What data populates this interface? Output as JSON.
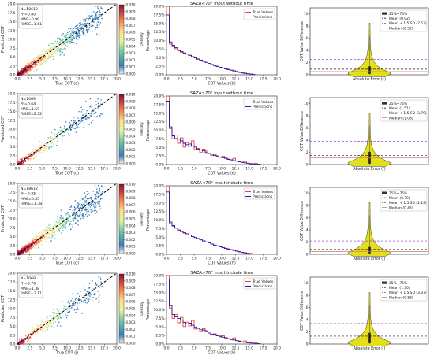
{
  "figure": {
    "rows": [
      {
        "scatter": {
          "stats": [
            "N=18612",
            "R²=0.80",
            "MAE=0.99",
            "RMSE=1.61"
          ],
          "xlabel": "True COT (a)",
          "ylabel": "Predicted COT",
          "density": "high",
          "seed": 11
        },
        "colorbar": {
          "label": "Density",
          "ticks": [
            "0.010",
            "0.009",
            "0.008",
            "0.007",
            "0.006",
            "0.005",
            "0.004",
            "0.003",
            "0.002",
            "0.001",
            "0.000"
          ]
        },
        "hist": {
          "title": "SAZA<70° Input without time",
          "xlabel": "COT Values (b)",
          "ylabel": "Percentage",
          "legend": [
            "True Values",
            "Predictions"
          ]
        },
        "violin": {
          "xlabel": "Absolute Error (c)",
          "ylabel": "COT Value Difference",
          "legend": [
            "25%~75%",
            "Mean (0.92)",
            "Mean + 1.5 SD (2.53)",
            "Median (0.52)"
          ],
          "mean": 0.92,
          "upper": 2.53,
          "median": 0.52,
          "peak": 8.5
        }
      },
      {
        "scatter": {
          "stats": [
            "N=1069",
            "R²=0.64",
            "MAE=1.59",
            "RMSE=2.32"
          ],
          "xlabel": "True COT (d)",
          "ylabel": "Predicted COT",
          "density": "low",
          "seed": 23
        },
        "colorbar": {
          "label": "Density",
          "ticks": [
            "0.010",
            "0.009",
            "0.008",
            "0.007",
            "0.006",
            "0.005",
            "0.004",
            "0.003",
            "0.002",
            "0.001",
            "0.000"
          ]
        },
        "hist": {
          "title": "SAZA>70° Input without time",
          "xlabel": "COT Values (e)",
          "ylabel": "Percentage",
          "legend": [
            "True Values",
            "Predictions"
          ]
        },
        "violin": {
          "xlabel": "Absolute Error (f)",
          "ylabel": "COT Value Difference",
          "legend": [
            "25%~75%",
            "Mean (1.51)",
            "Mean + 1.5 SD (3.79)",
            "Median (1.08)"
          ],
          "mean": 1.51,
          "upper": 3.79,
          "median": 1.08,
          "peak": 8.5
        }
      },
      {
        "scatter": {
          "stats": [
            "N=18612",
            "R²=0.85",
            "MAE=0.85",
            "RMSE=1.38"
          ],
          "xlabel": "True COT (g)",
          "ylabel": "Predicted COT",
          "density": "high",
          "seed": 37
        },
        "colorbar": {
          "label": "Density",
          "ticks": [
            "0.010",
            "0.009",
            "0.008",
            "0.007",
            "0.006",
            "0.005",
            "0.004",
            "0.003",
            "0.002",
            "0.001",
            "0.000"
          ]
        },
        "hist": {
          "title": "SAZA<70° Input include time",
          "xlabel": "COT Values (h)",
          "ylabel": "Percentage",
          "legend": [
            "True Values",
            "Predictions"
          ]
        },
        "violin": {
          "xlabel": "Absolute Error (i)",
          "ylabel": "COT Value Difference",
          "legend": [
            "25%~75%",
            "Mean (0.79)",
            "Mean + 1.5 SD (2.19)",
            "Median (0.45)"
          ],
          "mean": 0.79,
          "upper": 2.19,
          "median": 0.45,
          "peak": 8.5
        }
      },
      {
        "scatter": {
          "stats": [
            "N=1069",
            "R²=0.70",
            "MAE=1.38",
            "RMSE=2.11"
          ],
          "xlabel": "True COT (j)",
          "ylabel": "Predicted COT",
          "density": "low",
          "seed": 53
        },
        "colorbar": {
          "label": "Density",
          "ticks": [
            "0.010",
            "0.009",
            "0.008",
            "0.007",
            "0.006",
            "0.005",
            "0.004",
            "0.003",
            "0.002",
            "0.001",
            "0.000"
          ]
        },
        "hist": {
          "title": "SAZA>70° Input include time",
          "xlabel": "COT Values (k)",
          "ylabel": "Percentage",
          "legend": [
            "True Values",
            "Predictions"
          ]
        },
        "violin": {
          "xlabel": "Absolute Error (l)",
          "ylabel": "COT Value Difference",
          "legend": [
            "25%~75%",
            "Mean (1.30)",
            "Mean + 1.5 SD (3.37)",
            "Median (0.88)"
          ],
          "mean": 1.3,
          "upper": 3.37,
          "median": 0.88,
          "peak": 8.5
        }
      }
    ],
    "scatter_ticks": [
      "0.0",
      "2.5",
      "5.0",
      "7.5",
      "10.0",
      "12.5",
      "15.0",
      "17.5",
      "20.0"
    ],
    "hist_xticks": [
      "0.0",
      "2.5",
      "5.0",
      "7.5",
      "10.0",
      "12.5",
      "15.0",
      "17.5",
      "20.0"
    ],
    "hist_yticks": [
      "0.0%",
      "2.5%",
      "5.0%",
      "7.5%",
      "10.0%",
      "12.5%",
      "15.0%",
      "17.5%",
      "20.0%"
    ],
    "violin_yticks": [
      "0",
      "2",
      "4",
      "6",
      "8",
      "10"
    ]
  },
  "chart_data": [
    {
      "type": "scatter",
      "title": "",
      "xlabel": "True COT (a)",
      "ylabel": "Predicted COT",
      "xlim": [
        0,
        20
      ],
      "ylim": [
        0,
        20
      ],
      "annotations": [
        "N=18612",
        "R²=0.80",
        "MAE=0.99",
        "RMSE=1.61"
      ],
      "colorbar": {
        "label": "Density",
        "range": [
          0,
          0.01
        ]
      }
    },
    {
      "type": "bar",
      "title": "SAZA<70° Input without time",
      "xlabel": "COT Values (b)",
      "ylabel": "Percentage",
      "ylim": [
        0,
        20
      ],
      "x": [
        0.5,
        1.0,
        1.5,
        2.0,
        2.5,
        3.0,
        3.5,
        4.0,
        4.5,
        5.0,
        5.5,
        6.0,
        6.5,
        7.0,
        7.5,
        8.0,
        8.5,
        9.0,
        9.5,
        10.0,
        10.5,
        11.0,
        11.5,
        12.0,
        12.5,
        13.0,
        13.5,
        14.0,
        14.5,
        15.0,
        15.5,
        16.0
      ],
      "series": [
        {
          "name": "True Values",
          "values": [
            20.0,
            9.0,
            8.2,
            7.6,
            7.0,
            6.6,
            6.2,
            6.0,
            5.6,
            5.2,
            4.9,
            4.5,
            4.2,
            3.9,
            3.6,
            3.3,
            3.0,
            2.7,
            2.5,
            2.2,
            2.0,
            1.8,
            1.6,
            1.4,
            1.2,
            1.0,
            0.8,
            0.6,
            0.5,
            0.3,
            0.2,
            0.1
          ]
        },
        {
          "name": "Predictions",
          "values": [
            17.5,
            9.6,
            8.6,
            7.9,
            7.2,
            6.8,
            6.4,
            6.1,
            5.7,
            5.3,
            5.0,
            4.6,
            4.3,
            3.9,
            3.6,
            3.3,
            3.0,
            2.7,
            2.4,
            2.2,
            1.9,
            1.7,
            1.5,
            1.3,
            1.1,
            0.9,
            0.7,
            0.5,
            0.4,
            0.3,
            0.2,
            0.1
          ]
        }
      ]
    },
    {
      "type": "violin",
      "title": "",
      "xlabel": "Absolute Error (c)",
      "ylabel": "COT Value Difference",
      "ylim": [
        0,
        11
      ],
      "mean": 0.92,
      "mean_plus_1_5sd": 2.53,
      "median": 0.52,
      "legend": [
        "25%~75%",
        "Mean (0.92)",
        "Mean + 1.5 SD (2.53)",
        "Median (0.52)"
      ]
    },
    {
      "type": "scatter",
      "title": "",
      "xlabel": "True COT (d)",
      "ylabel": "Predicted COT",
      "xlim": [
        0,
        20
      ],
      "ylim": [
        0,
        20
      ],
      "annotations": [
        "N=1069",
        "R²=0.64",
        "MAE=1.59",
        "RMSE=2.32"
      ],
      "colorbar": {
        "label": "Density",
        "range": [
          0,
          0.01
        ]
      }
    },
    {
      "type": "bar",
      "title": "SAZA>70° Input without time",
      "xlabel": "COT Values (e)",
      "ylabel": "Percentage",
      "ylim": [
        0,
        20
      ],
      "x": [
        0.5,
        1.0,
        1.5,
        2.0,
        2.5,
        3.0,
        3.5,
        4.0,
        4.5,
        5.0,
        5.5,
        6.0,
        6.5,
        7.0,
        7.5,
        8.0,
        8.5,
        9.0,
        9.5,
        10.0,
        10.5,
        11.0,
        11.5,
        12.0,
        12.5,
        13.0,
        13.5,
        14.0,
        14.5,
        15.0,
        15.5,
        16.0,
        16.5,
        17.0
      ],
      "series": [
        {
          "name": "True Values",
          "values": [
            20.0,
            10.5,
            7.5,
            8.6,
            6.2,
            7.8,
            5.1,
            6.4,
            5.3,
            6.9,
            4.4,
            4.7,
            3.6,
            4.5,
            3.9,
            3.2,
            2.6,
            3.0,
            2.4,
            2.1,
            2.4,
            1.9,
            1.6,
            1.3,
            1.8,
            1.0,
            0.9,
            0.7,
            0.9,
            0.4,
            0.3,
            0.2,
            0.3,
            0.1
          ]
        },
        {
          "name": "Predictions",
          "values": [
            18.5,
            11.0,
            8.4,
            7.6,
            7.4,
            6.9,
            6.2,
            5.8,
            6.0,
            5.4,
            5.1,
            4.5,
            4.3,
            4.0,
            3.5,
            3.2,
            3.0,
            2.7,
            2.5,
            2.2,
            2.0,
            1.8,
            1.5,
            1.4,
            1.1,
            1.0,
            0.8,
            0.6,
            0.5,
            0.4,
            0.2,
            0.2,
            0.1,
            0.1
          ]
        }
      ]
    },
    {
      "type": "violin",
      "title": "",
      "xlabel": "Absolute Error (f)",
      "ylabel": "COT Value Difference",
      "ylim": [
        0,
        11
      ],
      "mean": 1.51,
      "mean_plus_1_5sd": 3.79,
      "median": 1.08,
      "legend": [
        "25%~75%",
        "Mean (1.51)",
        "Mean + 1.5 SD (3.79)",
        "Median (1.08)"
      ]
    },
    {
      "type": "scatter",
      "title": "",
      "xlabel": "True COT (g)",
      "ylabel": "Predicted COT",
      "xlim": [
        0,
        20
      ],
      "ylim": [
        0,
        20
      ],
      "annotations": [
        "N=18612",
        "R²=0.85",
        "MAE=0.85",
        "RMSE=1.38"
      ],
      "colorbar": {
        "label": "Density",
        "range": [
          0,
          0.01
        ]
      }
    },
    {
      "type": "bar",
      "title": "SAZA<70° Input include time",
      "xlabel": "COT Values (h)",
      "ylabel": "Percentage",
      "ylim": [
        0,
        20
      ],
      "x": [
        0.5,
        1.0,
        1.5,
        2.0,
        2.5,
        3.0,
        3.5,
        4.0,
        4.5,
        5.0,
        5.5,
        6.0,
        6.5,
        7.0,
        7.5,
        8.0,
        8.5,
        9.0,
        9.5,
        10.0,
        10.5,
        11.0,
        11.5,
        12.0,
        12.5,
        13.0,
        13.5,
        14.0,
        14.5,
        15.0,
        15.5,
        16.0
      ],
      "series": [
        {
          "name": "True Values",
          "values": [
            20.0,
            9.0,
            8.2,
            7.6,
            7.0,
            6.6,
            6.2,
            6.0,
            5.6,
            5.2,
            4.9,
            4.5,
            4.2,
            3.9,
            3.6,
            3.3,
            3.0,
            2.7,
            2.5,
            2.2,
            2.0,
            1.8,
            1.6,
            1.4,
            1.2,
            1.0,
            0.8,
            0.6,
            0.5,
            0.3,
            0.2,
            0.1
          ]
        },
        {
          "name": "Predictions",
          "values": [
            18.2,
            9.4,
            8.4,
            7.7,
            7.1,
            6.7,
            6.3,
            6.0,
            5.6,
            5.2,
            4.9,
            4.6,
            4.2,
            3.9,
            3.6,
            3.3,
            3.0,
            2.7,
            2.4,
            2.2,
            1.9,
            1.7,
            1.5,
            1.3,
            1.1,
            0.9,
            0.7,
            0.5,
            0.4,
            0.3,
            0.2,
            0.1
          ]
        }
      ]
    },
    {
      "type": "violin",
      "title": "",
      "xlabel": "Absolute Error (i)",
      "ylabel": "COT Value Difference",
      "ylim": [
        0,
        11
      ],
      "mean": 0.79,
      "mean_plus_1_5sd": 2.19,
      "median": 0.45,
      "legend": [
        "25%~75%",
        "Mean (0.79)",
        "Mean + 1.5 SD (2.19)",
        "Median (0.45)"
      ]
    },
    {
      "type": "scatter",
      "title": "",
      "xlabel": "True COT (j)",
      "ylabel": "Predicted COT",
      "xlim": [
        0,
        20
      ],
      "ylim": [
        0,
        20
      ],
      "annotations": [
        "N=1069",
        "R²=0.70",
        "MAE=1.38",
        "RMSE=2.11"
      ],
      "colorbar": {
        "label": "Density",
        "range": [
          0,
          0.01
        ]
      }
    },
    {
      "type": "bar",
      "title": "SAZA>70° Input include time",
      "xlabel": "COT Values (k)",
      "ylabel": "Percentage",
      "ylim": [
        0,
        20
      ],
      "x": [
        0.5,
        1.0,
        1.5,
        2.0,
        2.5,
        3.0,
        3.5,
        4.0,
        4.5,
        5.0,
        5.5,
        6.0,
        6.5,
        7.0,
        7.5,
        8.0,
        8.5,
        9.0,
        9.5,
        10.0,
        10.5,
        11.0,
        11.5,
        12.0,
        12.5,
        13.0,
        13.5,
        14.0,
        14.5,
        15.0,
        15.5,
        16.0,
        16.5,
        17.0
      ],
      "series": [
        {
          "name": "True Values",
          "values": [
            20.0,
            10.5,
            7.5,
            8.6,
            6.2,
            7.8,
            5.1,
            6.4,
            5.3,
            6.9,
            4.4,
            4.7,
            3.6,
            4.5,
            3.9,
            3.2,
            2.6,
            3.0,
            2.4,
            2.1,
            2.4,
            1.9,
            1.6,
            1.3,
            1.8,
            1.0,
            0.9,
            0.7,
            0.9,
            0.4,
            0.3,
            0.2,
            0.3,
            0.1
          ]
        },
        {
          "name": "Predictions",
          "values": [
            19.0,
            11.2,
            8.6,
            7.9,
            7.5,
            7.0,
            6.3,
            5.9,
            6.1,
            5.5,
            5.0,
            4.6,
            4.2,
            4.1,
            3.6,
            3.2,
            2.9,
            2.8,
            2.4,
            2.3,
            2.0,
            1.8,
            1.5,
            1.3,
            1.2,
            1.0,
            0.8,
            0.6,
            0.5,
            0.4,
            0.3,
            0.2,
            0.1,
            0.1
          ]
        }
      ]
    },
    {
      "type": "violin",
      "title": "",
      "xlabel": "Absolute Error (l)",
      "ylabel": "COT Value Difference",
      "ylim": [
        0,
        11
      ],
      "mean": 1.3,
      "mean_plus_1_5sd": 3.37,
      "median": 0.88,
      "legend": [
        "25%~75%",
        "Mean (1.30)",
        "Mean + 1.5 SD (3.37)",
        "Median (0.88)"
      ]
    }
  ],
  "colors": {
    "true_values": "#e8453c",
    "predictions": "#2a1aa8",
    "violin_fill": "#e3e01a",
    "mean_line": "#1a1a1a",
    "sd_line": "#8a2be2",
    "median_line": "#d87a7a",
    "diag_line": "#000000"
  }
}
